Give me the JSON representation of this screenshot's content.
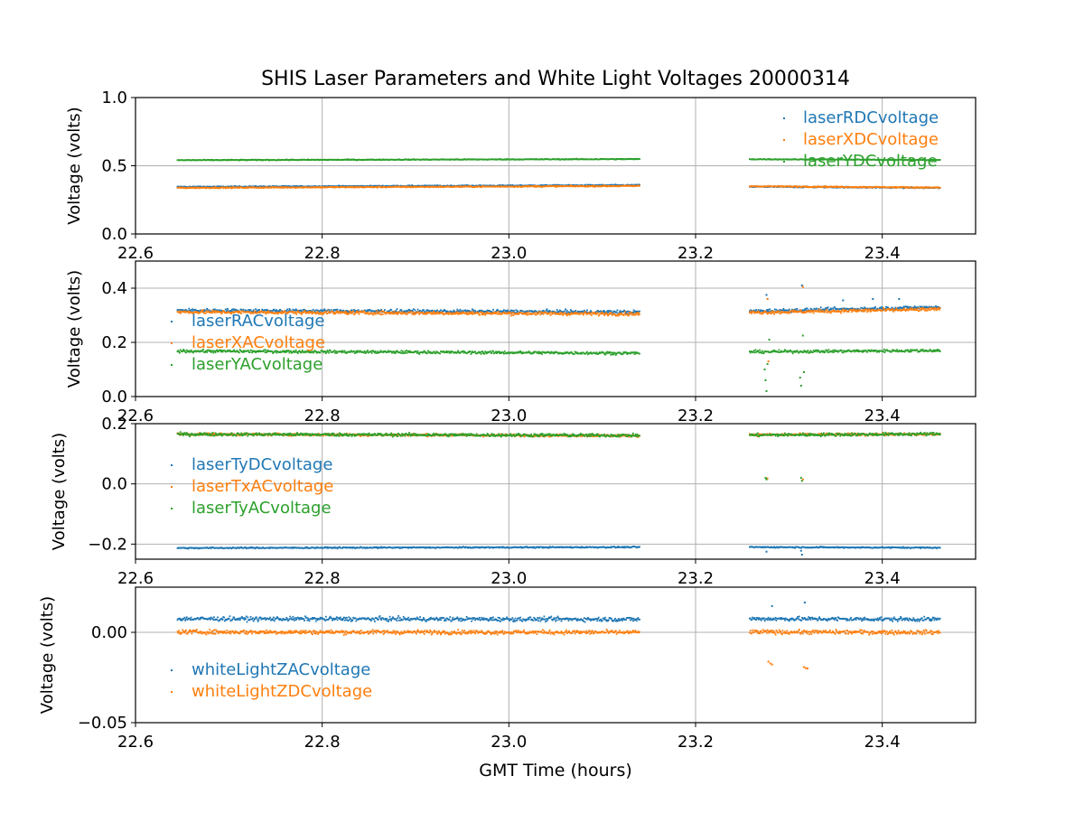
{
  "title": "SHIS Laser Parameters and White Light Voltages 20000314",
  "xlabel": "GMT Time (hours)",
  "colors": {
    "blue": "#1f77b4",
    "orange": "#ff7f0e",
    "green": "#2ca02c",
    "grid": "#b0b0b0",
    "axis": "#000000"
  },
  "chart_data": [
    {
      "type": "scatter",
      "ylabel": "Voltage (volts)",
      "xlim": [
        22.6,
        23.5
      ],
      "ylim": [
        0.0,
        1.0
      ],
      "xticks": [
        "22.6",
        "22.8",
        "23.0",
        "23.2",
        "23.4"
      ],
      "xtick_values": [
        22.6,
        22.8,
        23.0,
        23.2,
        23.4
      ],
      "yticks": [
        "0.0",
        "0.5",
        "1.0"
      ],
      "ytick_values": [
        0.0,
        0.5,
        1.0
      ],
      "legend_position": "upper-right",
      "segments": [
        [
          22.645,
          23.14
        ],
        [
          23.258,
          23.462
        ]
      ],
      "series": [
        {
          "name": "laserRDCvoltage",
          "color": "#1f77b4",
          "seg_levels": [
            [
              0.345,
              0.358
            ],
            [
              0.347,
              0.338
            ]
          ],
          "noise": 0.004,
          "spikes": []
        },
        {
          "name": "laserXDCvoltage",
          "color": "#ff7f0e",
          "seg_levels": [
            [
              0.338,
              0.352
            ],
            [
              0.35,
              0.34
            ]
          ],
          "noise": 0.004,
          "spikes": []
        },
        {
          "name": "laserYDCvoltage",
          "color": "#2ca02c",
          "seg_levels": [
            [
              0.541,
              0.549
            ],
            [
              0.548,
              0.542
            ]
          ],
          "noise": 0.003,
          "spikes": []
        }
      ]
    },
    {
      "type": "scatter",
      "ylabel": "Voltage (volts)",
      "xlim": [
        22.6,
        23.5
      ],
      "ylim": [
        0.0,
        0.5
      ],
      "xticks": [
        "22.6",
        "22.8",
        "23.0",
        "23.2",
        "23.4"
      ],
      "xtick_values": [
        22.6,
        22.8,
        23.0,
        23.2,
        23.4
      ],
      "yticks": [
        "0.0",
        "0.2",
        "0.4"
      ],
      "ytick_values": [
        0.0,
        0.2,
        0.4
      ],
      "legend_position": "middle-left",
      "segments": [
        [
          22.645,
          23.14
        ],
        [
          23.258,
          23.462
        ]
      ],
      "series": [
        {
          "name": "laserRACvoltage",
          "color": "#1f77b4",
          "seg_levels": [
            [
              0.318,
              0.312
            ],
            [
              0.315,
              0.33
            ]
          ],
          "noise": 0.006,
          "spikes": [
            [
              23.276,
              0.375
            ],
            [
              23.277,
              0.36
            ],
            [
              23.314,
              0.41
            ],
            [
              23.358,
              0.355
            ],
            [
              23.39,
              0.36
            ],
            [
              23.418,
              0.36
            ]
          ]
        },
        {
          "name": "laserXACvoltage",
          "color": "#ff7f0e",
          "seg_levels": [
            [
              0.312,
              0.305
            ],
            [
              0.31,
              0.322
            ]
          ],
          "noise": 0.006,
          "spikes": [
            [
              23.277,
              0.36
            ],
            [
              23.278,
              0.13
            ],
            [
              23.315,
              0.405
            ],
            [
              23.316,
              0.09
            ]
          ]
        },
        {
          "name": "laserYACvoltage",
          "color": "#2ca02c",
          "seg_levels": [
            [
              0.168,
              0.16
            ],
            [
              0.165,
              0.17
            ]
          ],
          "noise": 0.005,
          "spikes": [
            [
              23.274,
              0.1
            ],
            [
              23.275,
              0.06
            ],
            [
              23.276,
              0.02
            ],
            [
              23.277,
              0.12
            ],
            [
              23.279,
              0.21
            ],
            [
              23.312,
              0.07
            ],
            [
              23.313,
              0.04
            ],
            [
              23.315,
              0.225
            ],
            [
              23.316,
              0.09
            ]
          ]
        }
      ]
    },
    {
      "type": "scatter",
      "ylabel": "Voltage (volts)",
      "xlim": [
        22.6,
        23.5
      ],
      "ylim": [
        -0.25,
        0.2
      ],
      "xticks": [
        "22.6",
        "22.8",
        "23.0",
        "23.2",
        "23.4"
      ],
      "xtick_values": [
        22.6,
        22.8,
        23.0,
        23.2,
        23.4
      ],
      "yticks": [
        "−0.2",
        "0.0",
        "0.2"
      ],
      "ytick_values": [
        -0.2,
        0.0,
        0.2
      ],
      "legend_position": "middle-left",
      "segments": [
        [
          22.645,
          23.14
        ],
        [
          23.258,
          23.462
        ]
      ],
      "series": [
        {
          "name": "laserTyDCvoltage",
          "color": "#1f77b4",
          "seg_levels": [
            [
              -0.213,
              -0.21
            ],
            [
              -0.21,
              -0.212
            ]
          ],
          "noise": 0.002,
          "spikes": [
            [
              23.276,
              -0.225
            ],
            [
              23.314,
              -0.235
            ],
            [
              23.313,
              -0.222
            ]
          ]
        },
        {
          "name": "laserTxACvoltage",
          "color": "#ff7f0e",
          "seg_levels": [
            [
              0.165,
              0.16
            ],
            [
              0.163,
              0.165
            ]
          ],
          "noise": 0.004,
          "spikes": [
            [
              23.277,
              0.018
            ],
            [
              23.315,
              0.015
            ]
          ]
        },
        {
          "name": "laserTyACvoltage",
          "color": "#2ca02c",
          "seg_levels": [
            [
              0.165,
              0.161
            ],
            [
              0.162,
              0.166
            ]
          ],
          "noise": 0.005,
          "spikes": [
            [
              23.275,
              0.02
            ],
            [
              23.276,
              0.015
            ],
            [
              23.313,
              0.02
            ],
            [
              23.314,
              0.01
            ]
          ]
        }
      ]
    },
    {
      "type": "scatter",
      "ylabel": "Voltage (volts)",
      "xlim": [
        22.6,
        23.5
      ],
      "xlabel": "GMT Time (hours)",
      "ylim": [
        -0.05,
        0.025
      ],
      "xticks": [
        "22.6",
        "22.8",
        "23.0",
        "23.2",
        "23.4"
      ],
      "xtick_values": [
        22.6,
        22.8,
        23.0,
        23.2,
        23.4
      ],
      "yticks": [
        "−0.05",
        "0.00"
      ],
      "ytick_values": [
        -0.05,
        0.0
      ],
      "legend_position": "lower-left",
      "segments": [
        [
          22.645,
          23.14
        ],
        [
          23.258,
          23.462
        ]
      ],
      "series": [
        {
          "name": "whiteLightZACvoltage",
          "color": "#1f77b4",
          "seg_levels": [
            [
              0.0075,
              0.0072
            ],
            [
              0.0075,
              0.0072
            ]
          ],
          "noise": 0.0011,
          "spikes": [
            [
              23.282,
              0.0145
            ],
            [
              23.317,
              0.0165
            ]
          ]
        },
        {
          "name": "whiteLightZDCvoltage",
          "color": "#ff7f0e",
          "seg_levels": [
            [
              0.0002,
              0.0
            ],
            [
              0.0002,
              0.0
            ]
          ],
          "noise": 0.0011,
          "spikes": [
            [
              23.278,
              -0.0162
            ],
            [
              23.28,
              -0.0172
            ],
            [
              23.282,
              -0.0178
            ],
            [
              23.316,
              -0.0192
            ],
            [
              23.318,
              -0.0198
            ],
            [
              23.32,
              -0.02
            ]
          ]
        }
      ]
    }
  ]
}
